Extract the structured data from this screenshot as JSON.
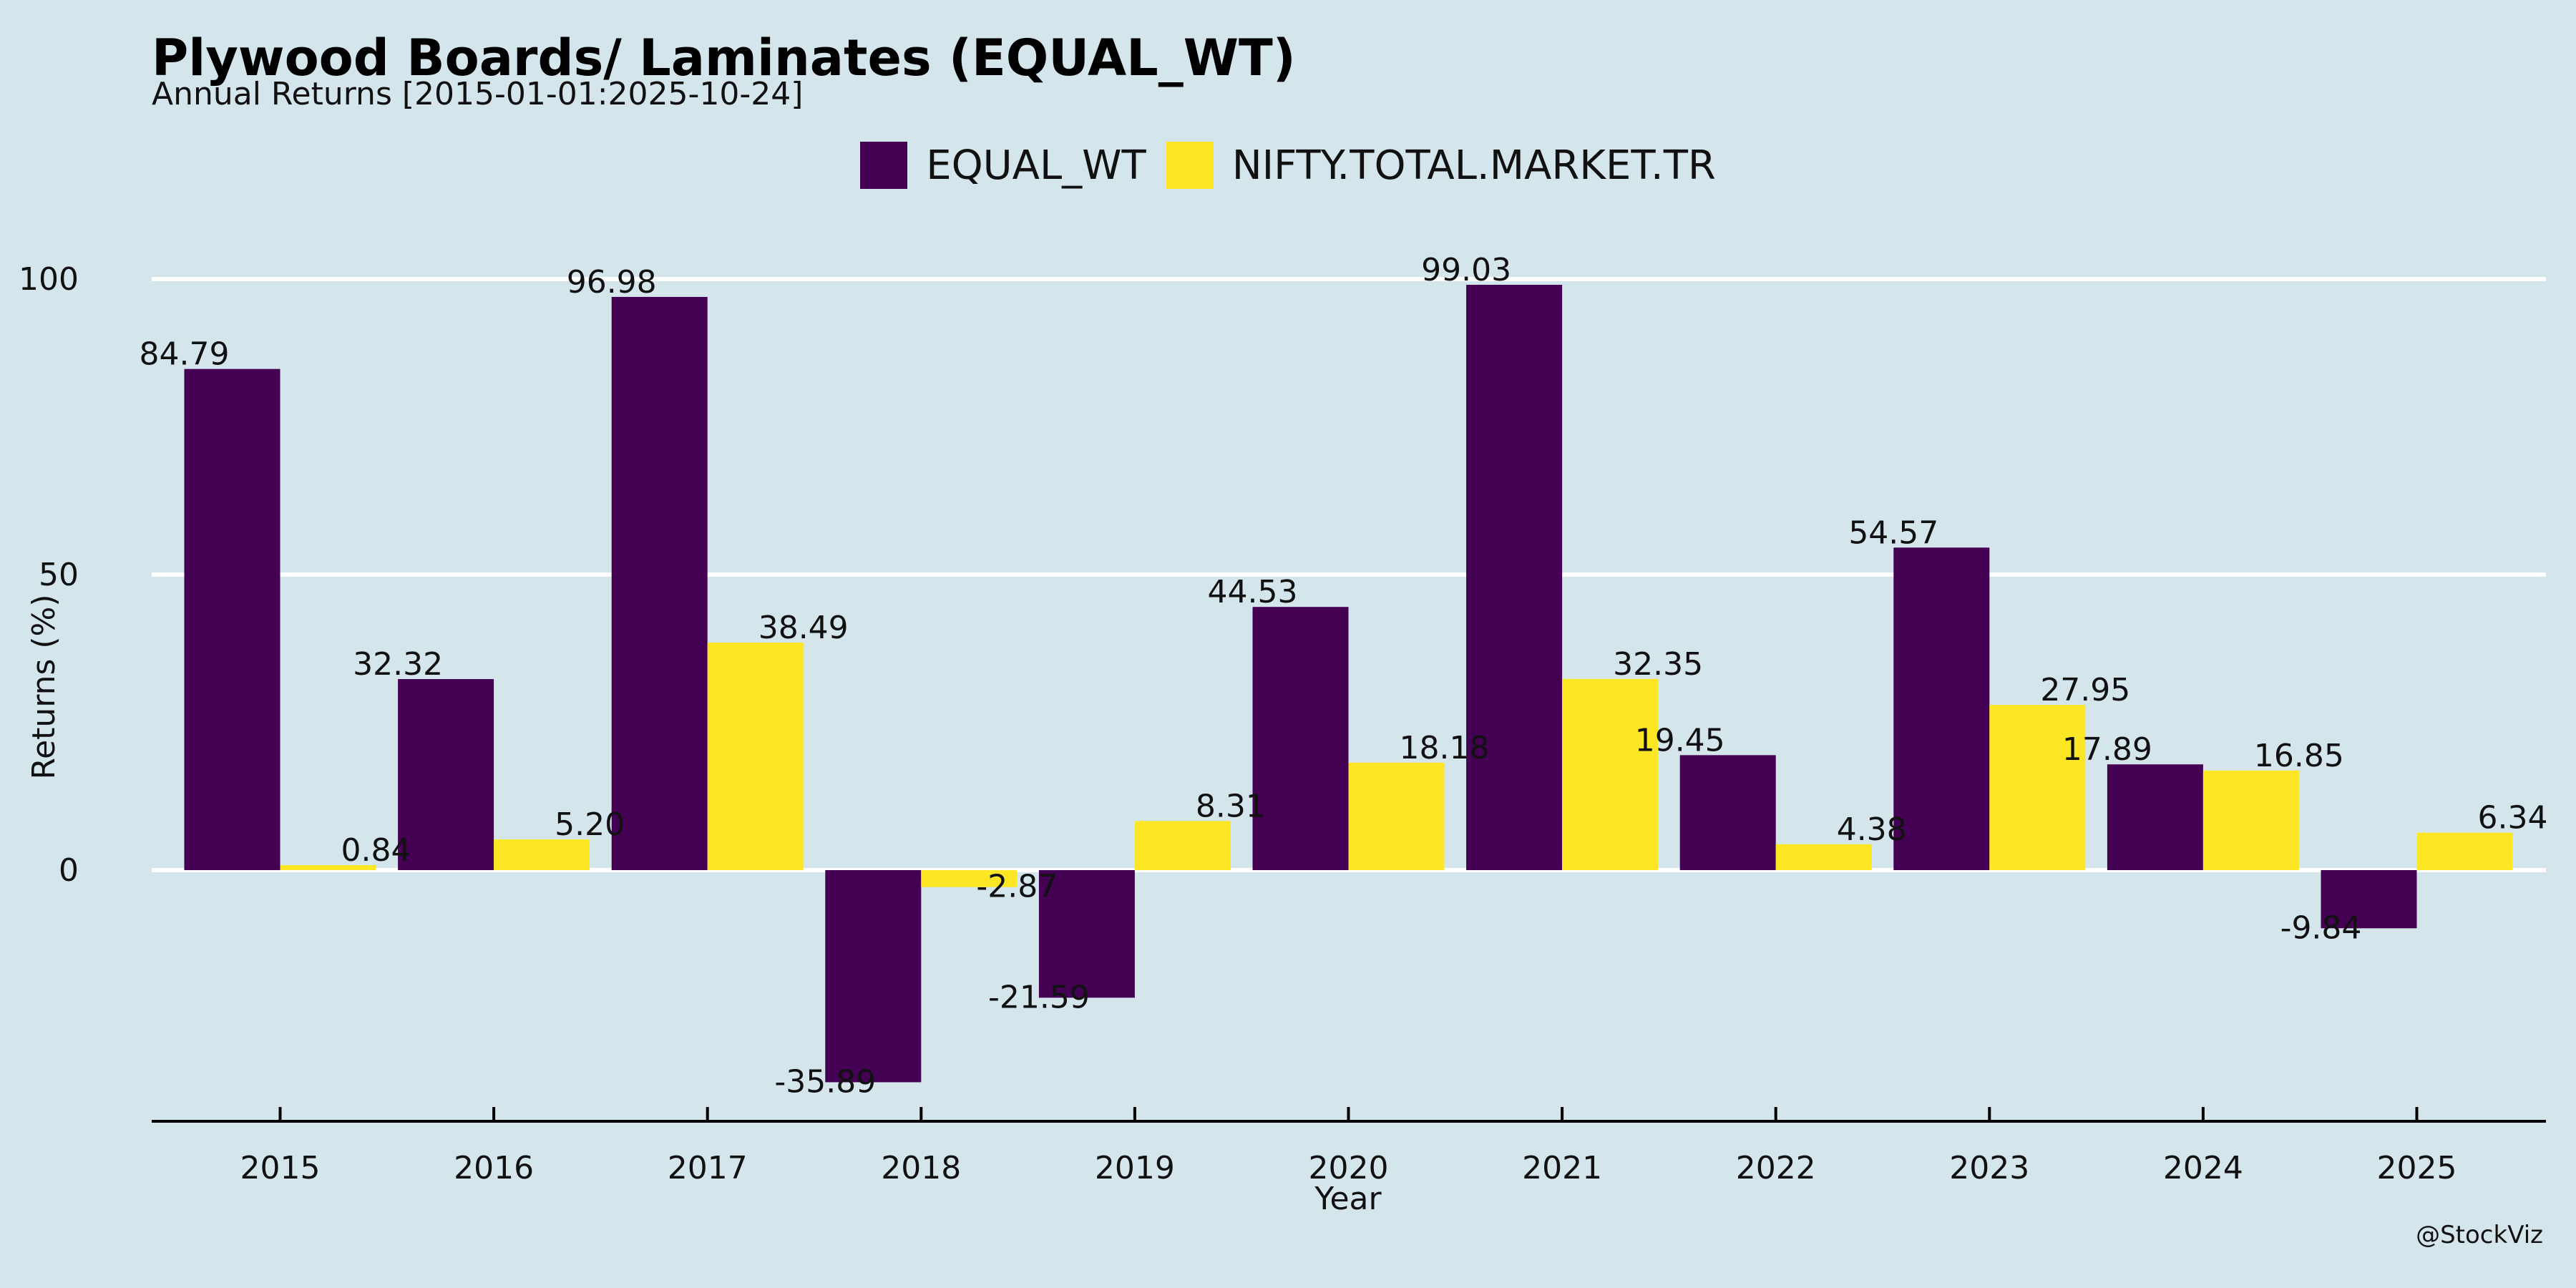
{
  "title": "Plywood Boards/ Laminates (EQUAL_WT)",
  "subtitle": "Annual Returns [2015-01-01:2025-10-24]",
  "watermark": "@StockViz",
  "chart_data": {
    "type": "bar",
    "xlabel": "Year",
    "ylabel": "Returns (%)",
    "ylim": [
      -42.5,
      105
    ],
    "yticks": [
      0,
      50,
      100
    ],
    "grid": "horizontal",
    "legend_position": "top-center",
    "categories": [
      "2015",
      "2016",
      "2017",
      "2018",
      "2019",
      "2020",
      "2021",
      "2022",
      "2023",
      "2024",
      "2025"
    ],
    "series": [
      {
        "name": "EQUAL_WT",
        "color": "#440154",
        "values": [
          84.79,
          32.32,
          96.98,
          -35.89,
          -21.59,
          44.53,
          99.03,
          19.45,
          54.57,
          17.89,
          -9.84
        ],
        "labels": [
          "84.79",
          "32.32",
          "96.98",
          "-35.89",
          "-21.59",
          "44.53",
          "99.03",
          "19.45",
          "54.57",
          "17.89",
          "-9.84"
        ]
      },
      {
        "name": "NIFTY.TOTAL.MARKET.TR",
        "color": "#fde725",
        "values": [
          0.84,
          5.2,
          38.49,
          -2.87,
          8.31,
          18.18,
          32.35,
          4.38,
          27.95,
          16.85,
          6.34
        ],
        "labels": [
          "0.84",
          "5.20",
          "38.49",
          "-2.87",
          "8.31",
          "18.18",
          "32.35",
          "4.38",
          "27.95",
          "16.85",
          "6.34"
        ]
      }
    ],
    "colors": {
      "background": "#d5e5ec",
      "grid": "#ffffff",
      "axis": "#000000"
    }
  }
}
